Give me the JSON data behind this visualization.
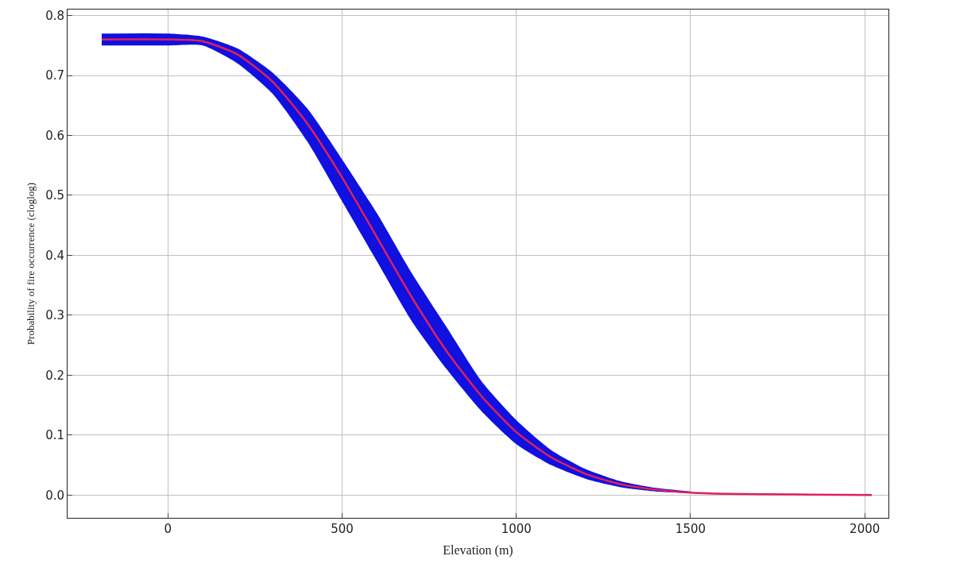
{
  "chart_data": {
    "type": "line",
    "xlabel": "Elevation (m)",
    "ylabel": "Probability of fire occurrence (cloglog)",
    "x": [
      -190,
      0,
      100,
      200,
      300,
      400,
      500,
      600,
      700,
      800,
      900,
      1000,
      1100,
      1200,
      1300,
      1400,
      1500,
      1600,
      1800,
      2020
    ],
    "series": [
      {
        "color": "#e0205a",
        "values": [
          0.76,
          0.76,
          0.757,
          0.735,
          0.69,
          0.62,
          0.53,
          0.43,
          0.33,
          0.24,
          0.165,
          0.105,
          0.063,
          0.035,
          0.018,
          0.009,
          0.004,
          0.002,
          0.001,
          0
        ],
        "lower": [
          0.75,
          0.75,
          0.75,
          0.72,
          0.67,
          0.59,
          0.49,
          0.39,
          0.29,
          0.21,
          0.14,
          0.085,
          0.05,
          0.027,
          0.013,
          0.006,
          0.003,
          null,
          null,
          null
        ],
        "upper": [
          0.77,
          0.77,
          0.765,
          0.745,
          0.705,
          0.645,
          0.56,
          0.47,
          0.37,
          0.28,
          0.19,
          0.125,
          0.075,
          0.043,
          0.023,
          0.012,
          0.006,
          null,
          null,
          null
        ]
      }
    ],
    "xlim": [
      -288,
      2068
    ],
    "xticks": [
      0,
      500,
      1000,
      1500,
      2000
    ],
    "ylim": [
      -0.038,
      0.81
    ],
    "yticks": [
      {
        "value": 0,
        "label": "0.0"
      },
      0.1,
      0.2,
      0.3,
      0.4,
      0.5,
      0.6,
      0.7,
      0.8
    ],
    "grid": true,
    "marker": "none",
    "line_style": "solid"
  }
}
